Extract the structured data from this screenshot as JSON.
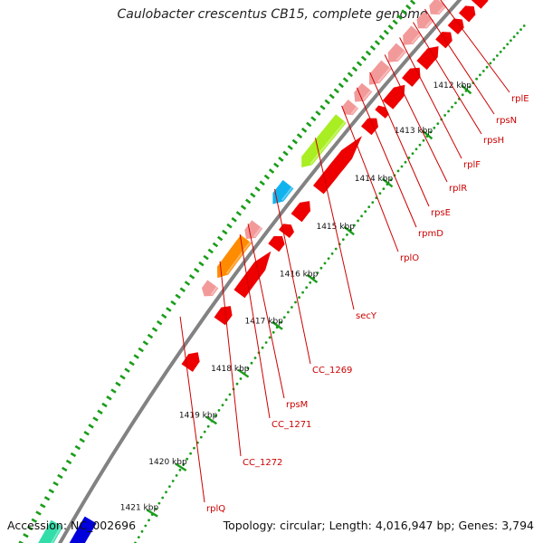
{
  "title": "Caulobacter crescentus CB15, complete genome",
  "footer": {
    "accession": "Accession: NC_002696",
    "topology": "Topology: circular; Length: 4,016,947 bp; Genes: 3,794"
  },
  "colors": {
    "backbone": "#8a8a8a",
    "gene_dark_red": "#ee0000",
    "gene_light_red": "#f29a9a",
    "gene_green": "#a8ee22",
    "gene_cyan": "#11b3ee",
    "gene_orange": "#ff8c00",
    "gene_blue": "#0000dd",
    "gene_teal": "#33ddaa",
    "ruler_dot": "#1a9d1a",
    "label_red": "#cc0000"
  },
  "ruler": {
    "tick_labels": [
      "1412 kbp",
      "1413 kbp",
      "1414 kbp",
      "1415 kbp",
      "1416 kbp",
      "1417 kbp",
      "1418 kbp",
      "1419 kbp",
      "1420 kbp",
      "1421 kbp"
    ]
  },
  "gene_labels": [
    "rplE",
    "rpsN",
    "rpsH",
    "rplF",
    "rplR",
    "rpsE",
    "rpmD",
    "rplO",
    "secY",
    "CC_1269",
    "rpsM",
    "CC_1271",
    "CC_1272",
    "rplQ"
  ]
}
